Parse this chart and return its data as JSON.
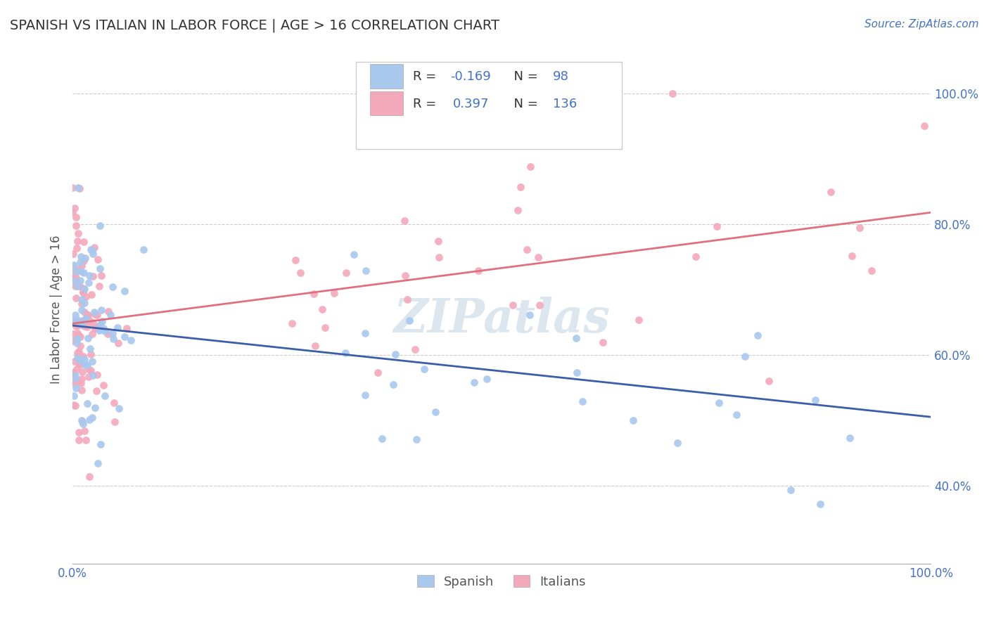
{
  "title": "SPANISH VS ITALIAN IN LABOR FORCE | AGE > 16 CORRELATION CHART",
  "source_text": "Source: ZipAtlas.com",
  "ylabel": "In Labor Force | Age > 16",
  "xlim": [
    0.0,
    1.0
  ],
  "ylim": [
    0.28,
    1.06
  ],
  "spanish_color": "#A8C8EE",
  "italian_color": "#F4A8BB",
  "spanish_line_color": "#3A5FA8",
  "italian_line_color": "#E07080",
  "legend_spanish_label": "Spanish",
  "legend_italian_label": "Italians",
  "r_spanish": "-0.169",
  "n_spanish": "98",
  "r_italian": "0.397",
  "n_italian": "136",
  "background_color": "#FFFFFF",
  "grid_color": "#CCCCCC",
  "watermark": "ZIPatlas",
  "axis_color": "#4472C4",
  "sp_line_y0": 0.645,
  "sp_line_y1": 0.505,
  "it_line_y0": 0.648,
  "it_line_y1": 0.818
}
